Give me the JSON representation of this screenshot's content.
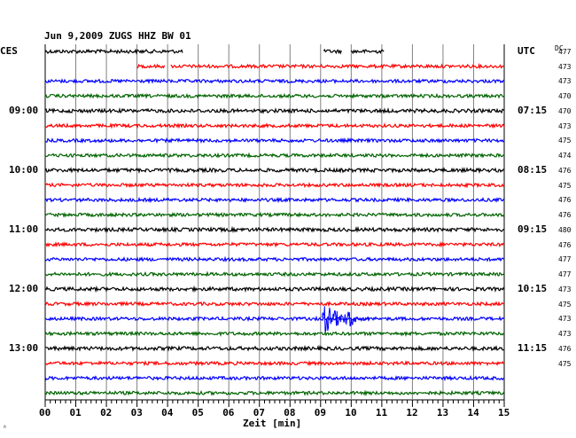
{
  "header": {
    "title": "Jun 9,2009   ZUGS HHZ BW 01",
    "left_zone": "CES",
    "right_zone": "UTC",
    "dc_label": "DC"
  },
  "footer": {
    "xlabel": "Zeit [min]",
    "corner_mark": "ᴬ"
  },
  "colors": {
    "black": "#000000",
    "red": "#ff0000",
    "blue": "#0000ff",
    "green": "#006400",
    "grid": "#808080"
  },
  "chart_data": {
    "type": "line",
    "title": "Jun 9,2009   ZUGS HHZ BW 01",
    "xlabel": "Zeit [min]",
    "ylabel": "",
    "x_ticks": [
      "00",
      "01",
      "02",
      "03",
      "04",
      "05",
      "06",
      "07",
      "08",
      "09",
      "10",
      "11",
      "12",
      "13",
      "14",
      "15"
    ],
    "xlim": [
      0,
      15
    ],
    "left_time_labels": [
      {
        "trace": 4,
        "text": "09:00"
      },
      {
        "trace": 8,
        "text": "10:00"
      },
      {
        "trace": 12,
        "text": "11:00"
      },
      {
        "trace": 16,
        "text": "12:00"
      },
      {
        "trace": 20,
        "text": "13:00"
      }
    ],
    "right_time_labels": [
      {
        "trace": 4,
        "text": "07:15"
      },
      {
        "trace": 8,
        "text": "08:15"
      },
      {
        "trace": 12,
        "text": "09:15"
      },
      {
        "trace": 16,
        "text": "10:15"
      },
      {
        "trace": 20,
        "text": "11:15"
      }
    ],
    "dc_values": [
      477,
      473,
      473,
      470,
      470,
      473,
      475,
      474,
      476,
      475,
      476,
      476,
      480,
      476,
      477,
      477,
      473,
      475,
      473,
      473,
      476,
      475
    ],
    "traces": [
      {
        "color": "black",
        "segments": [
          [
            0,
            4.5
          ],
          [
            9.1,
            9.7
          ],
          [
            10.0,
            11.1
          ]
        ],
        "amp": 2.0
      },
      {
        "color": "red",
        "segments": [
          [
            3.0,
            3.9
          ],
          [
            4.1,
            15
          ]
        ],
        "amp": 1.8
      },
      {
        "color": "blue",
        "segments": [
          [
            0,
            15
          ]
        ],
        "amp": 1.8
      },
      {
        "color": "green",
        "segments": [
          [
            0,
            15
          ]
        ],
        "amp": 1.8
      },
      {
        "color": "black",
        "segments": [
          [
            0,
            15
          ]
        ],
        "amp": 2.0
      },
      {
        "color": "red",
        "segments": [
          [
            0,
            15
          ]
        ],
        "amp": 1.8
      },
      {
        "color": "blue",
        "segments": [
          [
            0,
            15
          ]
        ],
        "amp": 1.8
      },
      {
        "color": "green",
        "segments": [
          [
            0,
            15
          ]
        ],
        "amp": 1.8
      },
      {
        "color": "black",
        "segments": [
          [
            0,
            15
          ]
        ],
        "amp": 2.0
      },
      {
        "color": "red",
        "segments": [
          [
            0,
            15
          ]
        ],
        "amp": 1.8
      },
      {
        "color": "blue",
        "segments": [
          [
            0,
            15
          ]
        ],
        "amp": 1.8
      },
      {
        "color": "green",
        "segments": [
          [
            0,
            15
          ]
        ],
        "amp": 1.8
      },
      {
        "color": "black",
        "segments": [
          [
            0,
            15
          ]
        ],
        "amp": 2.0
      },
      {
        "color": "red",
        "segments": [
          [
            0,
            15
          ]
        ],
        "amp": 1.8
      },
      {
        "color": "blue",
        "segments": [
          [
            0,
            15
          ]
        ],
        "amp": 1.8
      },
      {
        "color": "green",
        "segments": [
          [
            0,
            15
          ]
        ],
        "amp": 1.8
      },
      {
        "color": "black",
        "segments": [
          [
            0,
            15
          ]
        ],
        "amp": 2.0
      },
      {
        "color": "red",
        "segments": [
          [
            0,
            15
          ]
        ],
        "amp": 1.8
      },
      {
        "color": "blue",
        "segments": [
          [
            0,
            15
          ]
        ],
        "amp": 1.8,
        "event": {
          "start": 9.05,
          "peak": 9.1,
          "end": 10.6,
          "amp": 18
        }
      },
      {
        "color": "green",
        "segments": [
          [
            0,
            15
          ]
        ],
        "amp": 1.8
      },
      {
        "color": "black",
        "segments": [
          [
            0,
            15
          ]
        ],
        "amp": 2.0
      },
      {
        "color": "red",
        "segments": [
          [
            0,
            15
          ]
        ],
        "amp": 1.8
      },
      {
        "color": "blue",
        "segments": [
          [
            0,
            15
          ]
        ],
        "amp": 1.8
      },
      {
        "color": "green",
        "segments": [
          [
            0,
            15
          ]
        ],
        "amp": 1.8
      }
    ]
  }
}
